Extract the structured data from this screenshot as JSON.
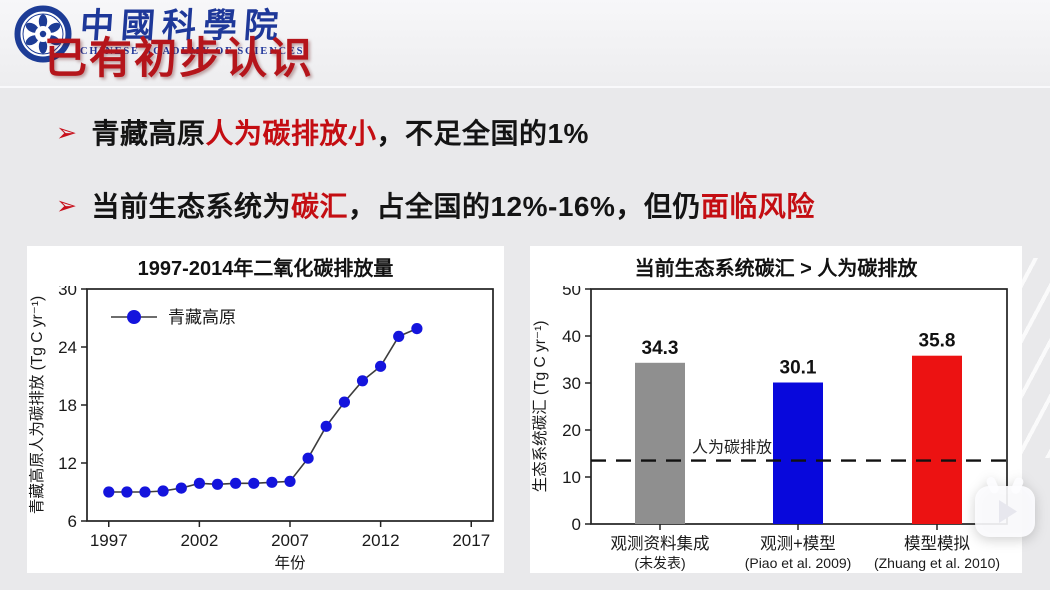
{
  "header": {
    "title": "已有初步认识",
    "logo": {
      "org_zh": "中國科學院",
      "org_en": "CHINESE ACADEMY OF SCIENCES"
    }
  },
  "bullets": [
    {
      "marker": "➢",
      "segments": [
        {
          "text": "青藏高原"
        },
        {
          "text": "人为碳排放小"
        },
        {
          "text": "，不足全国的1%"
        }
      ]
    },
    {
      "marker": "➢",
      "segments": [
        {
          "text": "当前生态系统为"
        },
        {
          "text": "碳汇"
        },
        {
          "text": "，占全国的12%-16%，但仍"
        },
        {
          "text": "面临风险"
        }
      ]
    }
  ],
  "chart_data": [
    {
      "type": "line",
      "title": "1997-2014年二氧化碳排放量",
      "xlabel": "年份",
      "ylabel": "青藏高原人为碳排放 (Tg C yr⁻¹)",
      "grid": false,
      "legend_position": "top-left",
      "x": [
        1997,
        1998,
        1999,
        2000,
        2001,
        2002,
        2003,
        2004,
        2005,
        2006,
        2007,
        2008,
        2009,
        2010,
        2011,
        2012,
        2013,
        2014
      ],
      "series": [
        {
          "name": "青藏高原",
          "values": [
            9.0,
            9.0,
            9.0,
            9.1,
            9.4,
            9.9,
            9.8,
            9.9,
            9.9,
            10.0,
            10.1,
            12.5,
            15.8,
            18.3,
            20.5,
            22.0,
            25.1,
            25.9
          ]
        }
      ],
      "xlim": [
        1995.8,
        2018.2
      ],
      "ylim": [
        6,
        30
      ],
      "xticks": [
        1997,
        2002,
        2007,
        2012,
        2017
      ],
      "yticks": [
        6,
        12,
        18,
        24,
        30
      ],
      "marker_color": "#1414dd",
      "line_color": "#3d3d3d"
    },
    {
      "type": "bar",
      "title": "当前生态系统碳汇 > 人为碳排放",
      "xlabel": "",
      "ylabel": "生态系统碳汇 (Tg C yr⁻¹)",
      "grid": false,
      "categories": [
        "观测资料集成",
        "观测+模型",
        "模型模拟"
      ],
      "category_sublabels": [
        "(未发表)",
        "(Piao et al. 2009)",
        "(Zhuang et al. 2010)"
      ],
      "values": [
        34.3,
        30.1,
        35.8
      ],
      "bar_colors": [
        "#8f8f8f",
        "#0808dc",
        "#ec1212"
      ],
      "ylim": [
        0,
        50
      ],
      "yticks": [
        0,
        10,
        20,
        30,
        40,
        50
      ],
      "reference_line": {
        "value": 13.5,
        "label": "人为碳排放",
        "style": "dashed",
        "color": "#111111"
      }
    }
  ],
  "colors": {
    "title_red": "#b5151b",
    "emphasis_red": "#c40d12",
    "logo_blue": "#1e3899",
    "slide_background": "#e9e9eb",
    "panel_background": "#ffffff"
  },
  "play_overlay": {
    "label": "play"
  }
}
